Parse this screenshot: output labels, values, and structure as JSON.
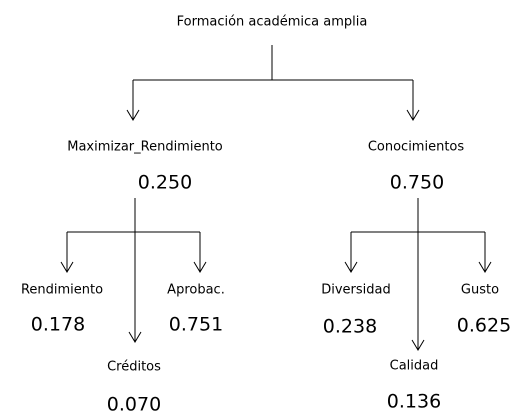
{
  "root": {
    "label": "Formación académica amplia"
  },
  "nodes": [
    {
      "label": "Maximizar_Rendimiento",
      "value": "0.250"
    },
    {
      "label": "Conocimientos",
      "value": "0.750"
    },
    {
      "label": "Rendimiento",
      "value": "0.178"
    },
    {
      "label": "Créditos",
      "value": "0.070"
    },
    {
      "label": "Aprobac.",
      "value": "0.751"
    },
    {
      "label": "Diversidad",
      "value": "0.238"
    },
    {
      "label": "Calidad",
      "value": "0.136"
    },
    {
      "label": "Gusto",
      "value": "0.625"
    }
  ]
}
